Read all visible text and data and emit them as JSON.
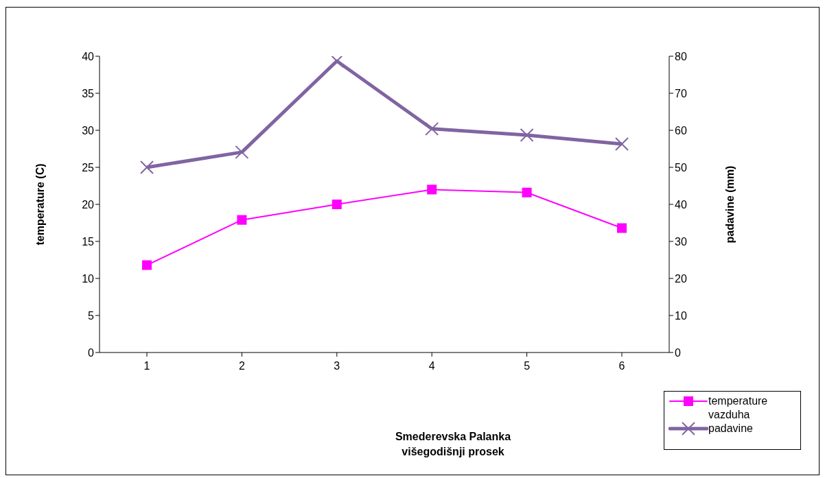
{
  "chart_data": {
    "type": "line",
    "annotations": [
      "Smederevska Palanka\nvišegodišnji prosek"
    ],
    "ylabel": "temperature (C)",
    "y2label": "padavine (mm)",
    "categories": [
      "1",
      "2",
      "3",
      "4",
      "5",
      "6"
    ],
    "series": [
      {
        "name": "temperature vazduha",
        "color": "#ff00ff",
        "marker": "square",
        "values": [
          11.8,
          17.9,
          20.0,
          22.0,
          21.6,
          16.8
        ]
      },
      {
        "name": "padavine",
        "color": "#8064a2",
        "marker": "cross",
        "axis": "y2",
        "values": [
          50.0,
          54.1,
          78.7,
          60.4,
          58.7,
          56.3
        ]
      }
    ],
    "ylim": [
      0,
      40
    ],
    "yticks": [
      0,
      5,
      10,
      15,
      20,
      25,
      30,
      35,
      40
    ],
    "y2lim": [
      0,
      80
    ],
    "y2ticks": [
      0,
      10,
      20,
      30,
      40,
      50,
      60,
      70,
      80
    ],
    "grid": false,
    "legend": "bottom right"
  }
}
